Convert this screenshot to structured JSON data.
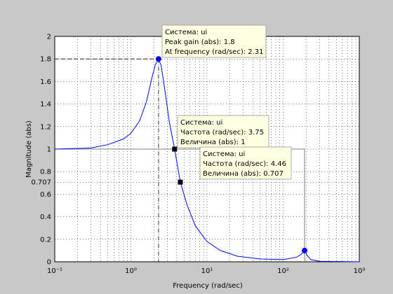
{
  "chart_data": {
    "type": "line",
    "log_x": true,
    "grid": true,
    "xlabel": "Frequency  (rad/sec)",
    "ylabel": "Magnitude (abs)",
    "xlim": [
      0.1,
      1000
    ],
    "ylim": [
      0,
      2
    ],
    "xticks": [
      {
        "value": 0.1,
        "label": "10⁻¹"
      },
      {
        "value": 1,
        "label": "10⁰"
      },
      {
        "value": 10,
        "label": "10¹"
      },
      {
        "value": 100,
        "label": "10²"
      },
      {
        "value": 1000,
        "label": "10³"
      }
    ],
    "yticks": [
      0,
      0.2,
      0.4,
      0.6,
      0.707,
      0.8,
      1,
      1.2,
      1.4,
      1.6,
      1.8,
      2
    ],
    "series": [
      {
        "color": "#0000ff",
        "x": [
          0.1,
          0.3,
          0.5,
          0.8,
          1,
          1.3,
          1.6,
          1.9,
          2.1,
          2.31,
          2.5,
          2.8,
          3.2,
          3.75,
          4.46,
          5.5,
          7,
          10,
          15,
          25,
          50,
          100,
          150,
          175,
          191,
          205,
          230,
          300,
          1000
        ],
        "values": [
          1.0,
          1.01,
          1.04,
          1.09,
          1.14,
          1.25,
          1.42,
          1.64,
          1.75,
          1.8,
          1.74,
          1.52,
          1.24,
          1.0,
          0.707,
          0.5,
          0.32,
          0.18,
          0.1,
          0.05,
          0.025,
          0.02,
          0.04,
          0.07,
          0.1,
          0.06,
          0.02,
          0.005,
          0
        ]
      }
    ],
    "markers": [
      {
        "x": 2.31,
        "y": 1.8,
        "color": "#0000ff",
        "shape": "circle",
        "tip": [
          "Система: ui",
          "Peak gain (abs): 1.8",
          "At frequency (rad/sec): 2.31"
        ]
      },
      {
        "x": 3.75,
        "y": 1,
        "color": "#000000",
        "shape": "square",
        "tip": [
          "Система: ui",
          "Частота (rad/sec): 3.75",
          "Величина (abs): 1"
        ]
      },
      {
        "x": 4.46,
        "y": 0.707,
        "color": "#000000",
        "shape": "square",
        "tip": [
          "Система: ui",
          "Частота (rad/sec): 4.46",
          "Величина (abs): 0.707"
        ]
      },
      {
        "x": 191,
        "y": 0.1,
        "color": "#0000ff",
        "shape": "circle"
      }
    ]
  }
}
